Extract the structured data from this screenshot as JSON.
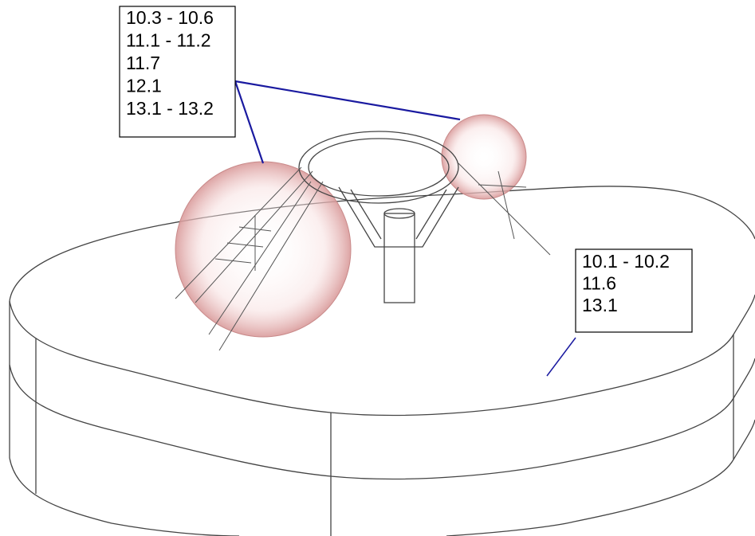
{
  "callouts": [
    {
      "lines": [
        "10.3 - 10.6",
        "11.1 - 11.2",
        "11.7",
        "12.1",
        "13.1 - 13.2"
      ]
    },
    {
      "lines": [
        "10.1 - 10.2",
        "11.6",
        "13.1"
      ]
    }
  ]
}
